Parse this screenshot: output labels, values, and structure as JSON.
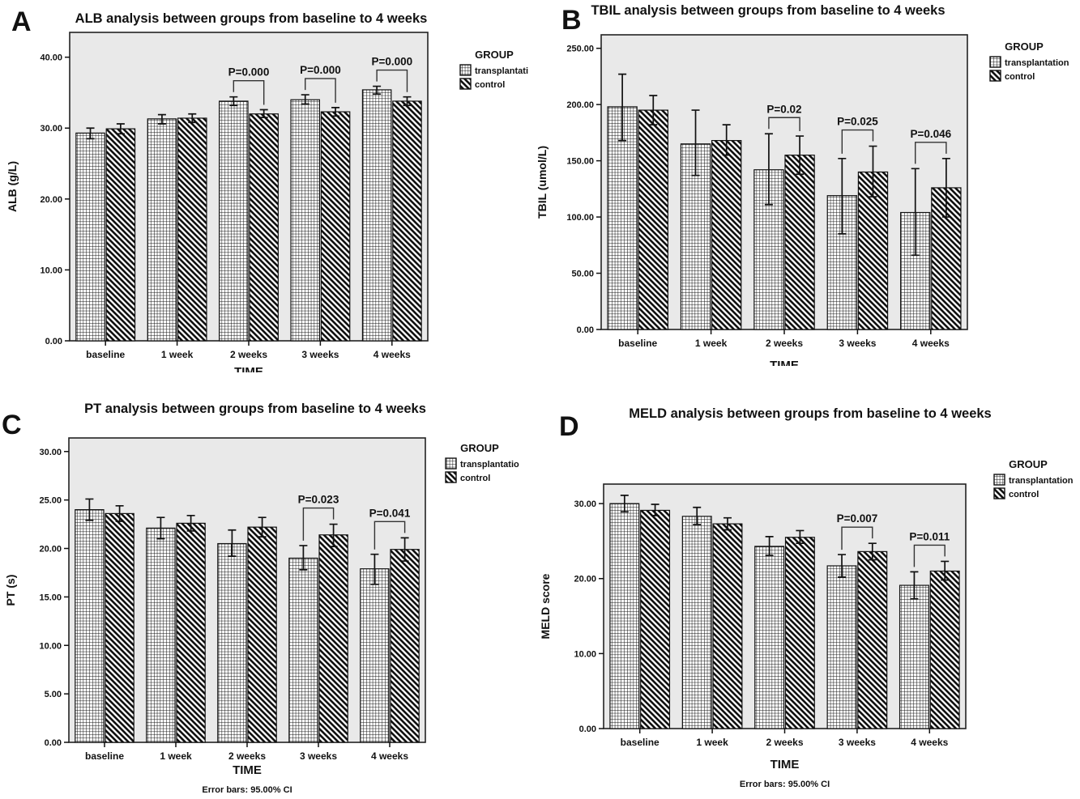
{
  "figure": {
    "background": "#ffffff",
    "text_color": "#111111",
    "plot_background": "#e9e9e9"
  },
  "chart_data": [
    {
      "panel": "A",
      "type": "bar",
      "title": "ALB analysis between groups from baseline to 4 weeks",
      "ylabel": "ALB (g/L)",
      "xlabel": "TIME",
      "categories": [
        "baseline",
        "1 week",
        "2 weeks",
        "3 weeks",
        "4 weeks"
      ],
      "ylim": [
        0,
        43.5
      ],
      "yticks": [
        0,
        10,
        20,
        30,
        40
      ],
      "ytick_labels": [
        "0.00",
        "10.00",
        "20.00",
        "30.00",
        "40.00"
      ],
      "grid": false,
      "legend": {
        "title": "GROUP",
        "position": "right",
        "entries": [
          "transplantati",
          "control"
        ]
      },
      "series": [
        {
          "name": "transplantation",
          "pattern": "grid-crosshatch",
          "values": [
            29.3,
            31.3,
            33.8,
            34.0,
            35.4
          ],
          "err_lo": [
            28.5,
            30.6,
            33.2,
            33.4,
            34.8
          ],
          "err_hi": [
            30.0,
            31.9,
            34.4,
            34.7,
            35.9
          ]
        },
        {
          "name": "control",
          "pattern": "diagonal-stripes",
          "values": [
            29.9,
            31.4,
            32.0,
            32.3,
            33.8
          ],
          "err_lo": [
            29.2,
            30.8,
            31.5,
            31.7,
            33.2
          ],
          "err_hi": [
            30.6,
            32.0,
            32.6,
            32.9,
            34.4
          ]
        }
      ],
      "annotations": [
        {
          "group_index": 2,
          "category": "2 weeks",
          "label": "P=0.000"
        },
        {
          "group_index": 3,
          "category": "3 weeks",
          "label": "P=0.000"
        },
        {
          "group_index": 4,
          "category": "4 weeks",
          "label": "P=0.000"
        }
      ]
    },
    {
      "panel": "B",
      "type": "bar",
      "title": "TBIL analysis between groups from baseline to 4 weeks",
      "ylabel": "TBIL (umol/L)",
      "xlabel": "TIME",
      "categories": [
        "baseline",
        "1 week",
        "2 weeks",
        "3 weeks",
        "4 weeks"
      ],
      "ylim": [
        0,
        262
      ],
      "yticks": [
        0,
        50,
        100,
        150,
        200,
        250
      ],
      "ytick_labels": [
        "0.00",
        "50.00",
        "100.00",
        "150.00",
        "200.00",
        "250.00"
      ],
      "grid": false,
      "legend": {
        "title": "GROUP",
        "position": "right",
        "entries": [
          "transplantation",
          "control"
        ]
      },
      "series": [
        {
          "name": "transplantation",
          "pattern": "grid-crosshatch",
          "values": [
            198,
            165,
            142,
            119,
            104
          ],
          "err_lo": [
            168,
            137,
            111,
            85,
            66
          ],
          "err_hi": [
            227,
            195,
            174,
            152,
            143
          ]
        },
        {
          "name": "control",
          "pattern": "diagonal-stripes",
          "values": [
            195,
            168,
            155,
            140,
            126
          ],
          "err_lo": [
            182,
            155,
            138,
            118,
            100
          ],
          "err_hi": [
            208,
            182,
            172,
            163,
            152
          ]
        }
      ],
      "annotations": [
        {
          "group_index": 2,
          "category": "2 weeks",
          "label": "P=0.02"
        },
        {
          "group_index": 3,
          "category": "3 weeks",
          "label": "P=0.025"
        },
        {
          "group_index": 4,
          "category": "4 weeks",
          "label": "P=0.046"
        }
      ]
    },
    {
      "panel": "C",
      "type": "bar",
      "title": "PT analysis between groups from baseline to 4 weeks",
      "ylabel": "PT (s)",
      "xlabel": "TIME",
      "footnote": "Error bars: 95.00% CI",
      "categories": [
        "baseline",
        "1 week",
        "2 weeks",
        "3 weeks",
        "4 weeks"
      ],
      "ylim": [
        0,
        31.4
      ],
      "yticks": [
        0,
        5,
        10,
        15,
        20,
        25,
        30
      ],
      "ytick_labels": [
        "0.00",
        "5.00",
        "10.00",
        "15.00",
        "20.00",
        "25.00",
        "30.00"
      ],
      "grid": false,
      "legend": {
        "title": "GROUP",
        "position": "right",
        "entries": [
          "transplantatio",
          "control"
        ]
      },
      "series": [
        {
          "name": "transplantation",
          "pattern": "grid-crosshatch",
          "values": [
            24.0,
            22.1,
            20.5,
            19.0,
            17.9
          ],
          "err_lo": [
            22.9,
            21.0,
            19.2,
            17.8,
            16.3
          ],
          "err_hi": [
            25.1,
            23.2,
            21.9,
            20.3,
            19.4
          ]
        },
        {
          "name": "control",
          "pattern": "diagonal-stripes",
          "values": [
            23.6,
            22.6,
            22.2,
            21.4,
            19.9
          ],
          "err_lo": [
            22.8,
            21.8,
            21.2,
            20.2,
            18.7
          ],
          "err_hi": [
            24.4,
            23.4,
            23.2,
            22.5,
            21.1
          ]
        }
      ],
      "annotations": [
        {
          "group_index": 3,
          "category": "3 weeks",
          "label": "P=0.023"
        },
        {
          "group_index": 4,
          "category": "4 weeks",
          "label": "P=0.041"
        }
      ]
    },
    {
      "panel": "D",
      "type": "bar",
      "title": "MELD analysis between groups from baseline to 4 weeks",
      "ylabel": "MELD score",
      "xlabel": "TIME",
      "footnote": "Error bars: 95.00% CI",
      "categories": [
        "baseline",
        "1 week",
        "2 weeks",
        "3 weeks",
        "4 weeks"
      ],
      "ylim": [
        0,
        32.6
      ],
      "yticks": [
        0,
        10,
        20,
        30
      ],
      "ytick_labels": [
        "0.00",
        "10.00",
        "20.00",
        "30.00"
      ],
      "grid": false,
      "legend": {
        "title": "GROUP",
        "position": "right",
        "entries": [
          "transplantation",
          "control"
        ]
      },
      "series": [
        {
          "name": "transplantation",
          "pattern": "grid-crosshatch",
          "values": [
            30.0,
            28.3,
            24.3,
            21.7,
            19.1
          ],
          "err_lo": [
            28.9,
            27.2,
            23.1,
            20.2,
            17.3
          ],
          "err_hi": [
            31.1,
            29.5,
            25.6,
            23.2,
            20.9
          ]
        },
        {
          "name": "control",
          "pattern": "diagonal-stripes",
          "values": [
            29.1,
            27.3,
            25.5,
            23.6,
            21.0
          ],
          "err_lo": [
            28.4,
            26.5,
            24.7,
            22.5,
            19.8
          ],
          "err_hi": [
            29.9,
            28.1,
            26.4,
            24.7,
            22.3
          ]
        }
      ],
      "annotations": [
        {
          "group_index": 3,
          "category": "3 weeks",
          "label": "P=0.007"
        },
        {
          "group_index": 4,
          "category": "4 weeks",
          "label": "P=0.011"
        }
      ]
    }
  ]
}
